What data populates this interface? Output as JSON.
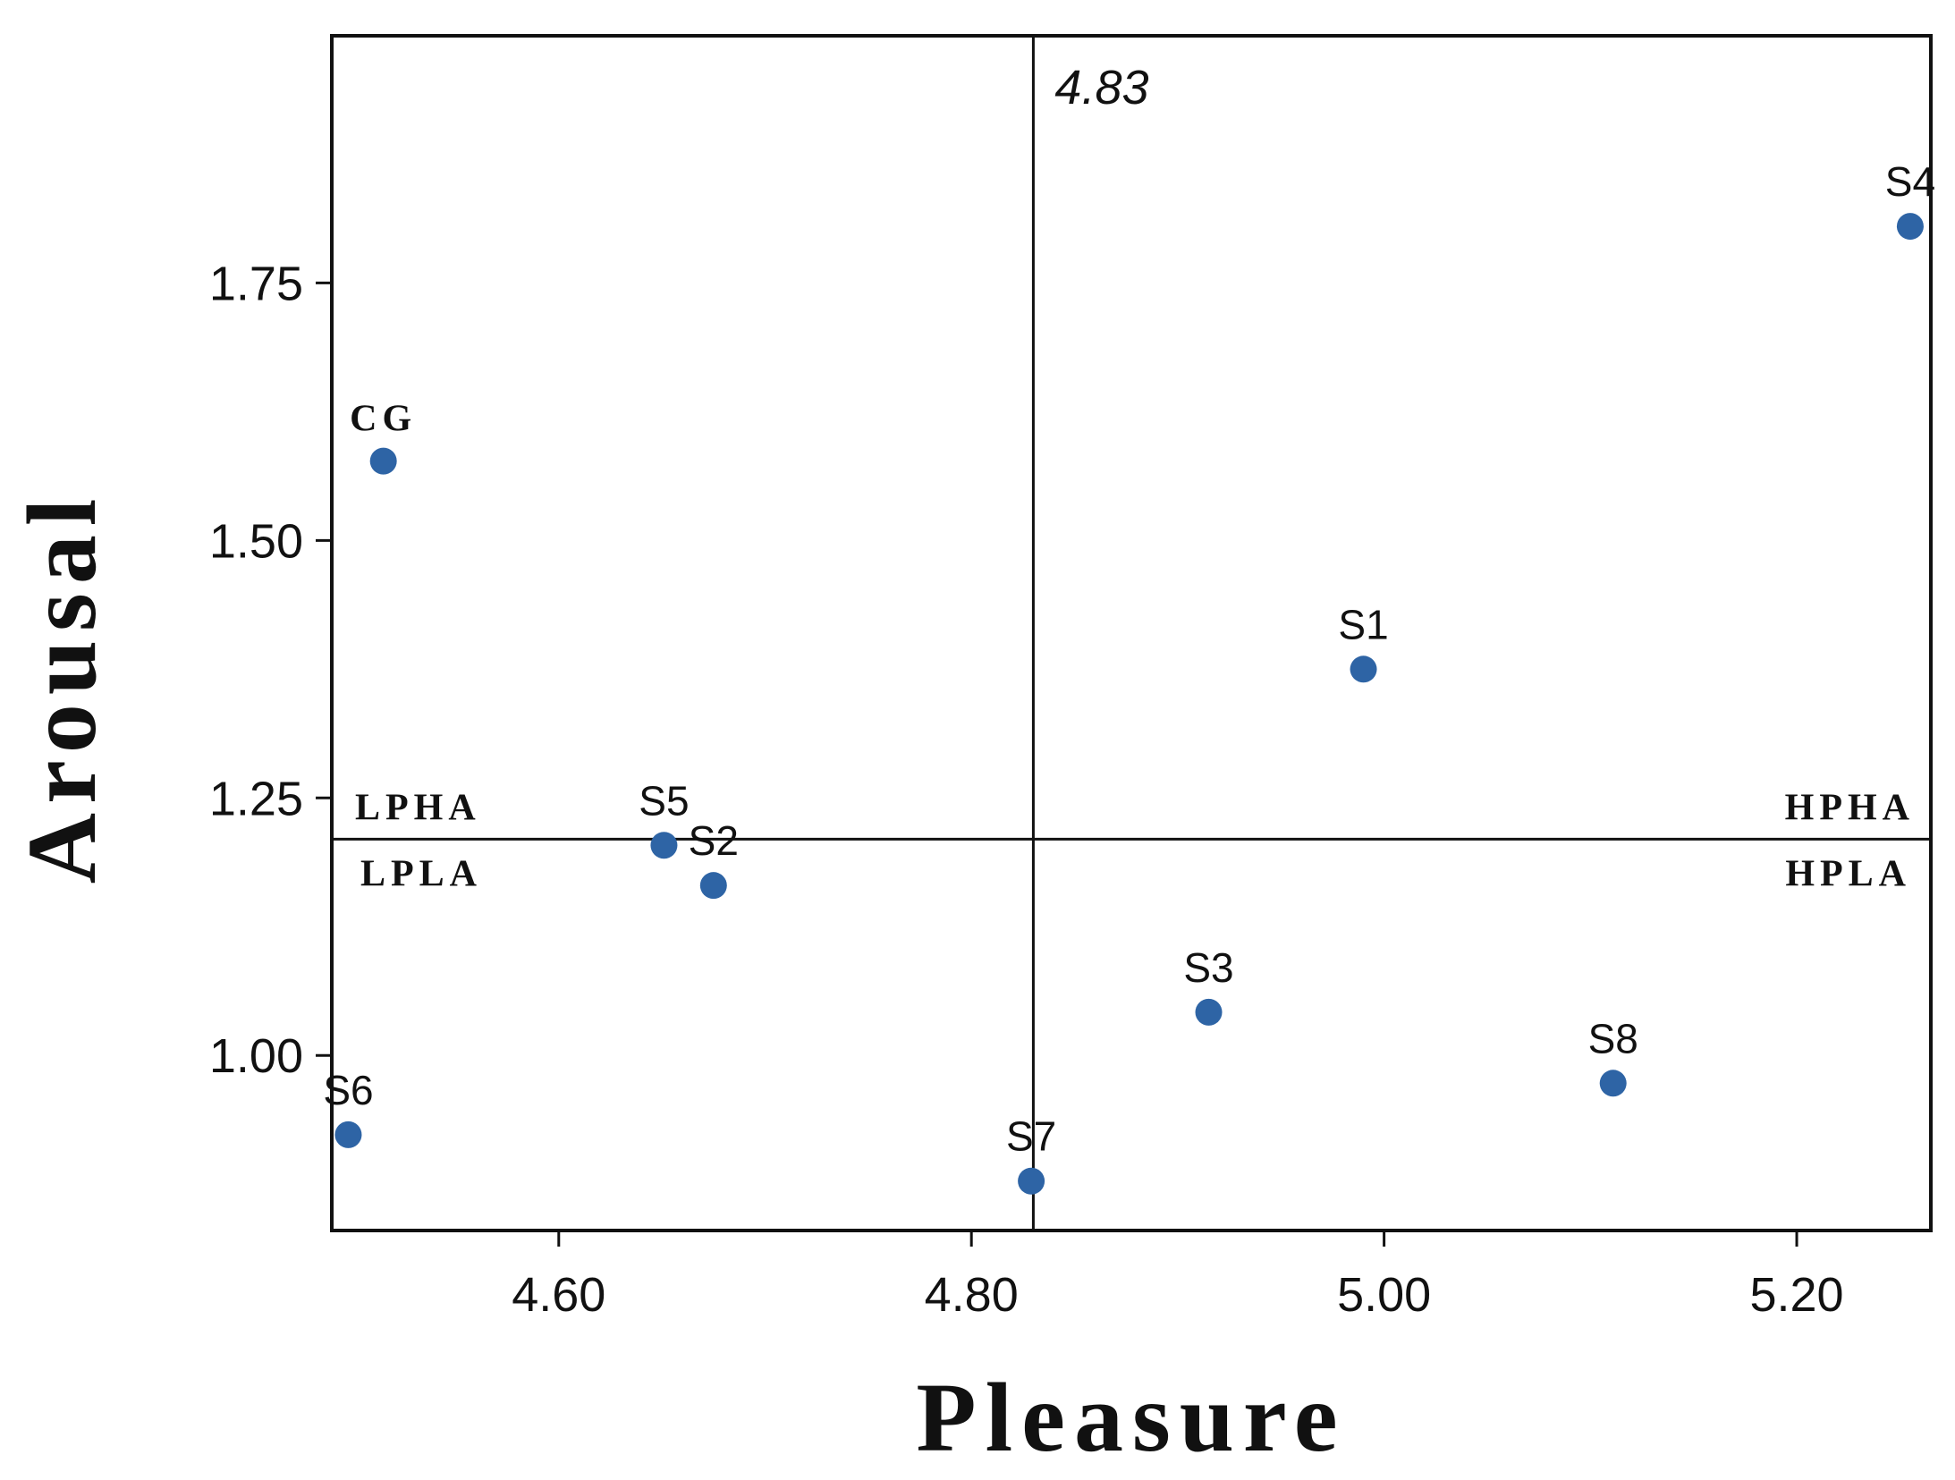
{
  "chart_data": {
    "type": "scatter",
    "xlabel": "Pleasure",
    "ylabel": "Arousal",
    "xlim": [
      4.49,
      5.265
    ],
    "ylim": [
      0.83,
      1.99
    ],
    "x_ticks": [
      "4.60",
      "4.80",
      "5.00",
      "5.20"
    ],
    "y_ticks": [
      "1.00",
      "1.25",
      "1.50",
      "1.75"
    ],
    "reference_lines": {
      "vertical": {
        "x": 4.83,
        "label": "4.83"
      },
      "horizontal": {
        "y": 1.21
      }
    },
    "quadrant_labels": {
      "top_left": "LPHA",
      "bottom_left": "LPLA",
      "top_right": "HPHA",
      "bottom_right": "HPLA"
    },
    "points": [
      {
        "label": "CG",
        "x": 4.515,
        "y": 1.577
      },
      {
        "label": "S1",
        "x": 4.99,
        "y": 1.375
      },
      {
        "label": "S2",
        "x": 4.675,
        "y": 1.165
      },
      {
        "label": "S3",
        "x": 4.915,
        "y": 1.042
      },
      {
        "label": "S4",
        "x": 5.255,
        "y": 1.805
      },
      {
        "label": "S5",
        "x": 4.651,
        "y": 1.204
      },
      {
        "label": "S6",
        "x": 4.498,
        "y": 0.923
      },
      {
        "label": "S7",
        "x": 4.829,
        "y": 0.878
      },
      {
        "label": "S8",
        "x": 5.111,
        "y": 0.973
      }
    ],
    "colors": {
      "point": "#2e64a5",
      "axis": "#111111"
    },
    "grid": false
  }
}
